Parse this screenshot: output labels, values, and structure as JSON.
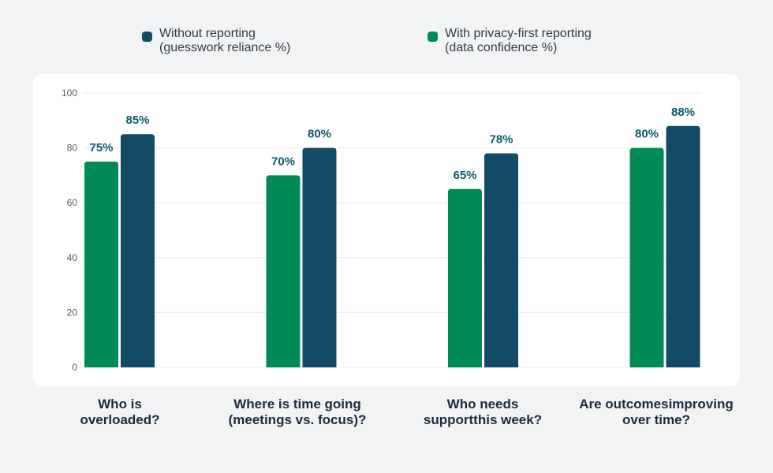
{
  "chart_data": {
    "type": "bar",
    "categories": [
      [
        "Who is",
        "overloaded?"
      ],
      [
        "Where is time going",
        "(meetings vs. focus)?"
      ],
      [
        "Who needs",
        "supportthis week?"
      ],
      [
        "Are outcomesimproving",
        "over time?"
      ]
    ],
    "series": [
      {
        "name": [
          "With privacy-first reporting",
          "(data confidence %)"
        ],
        "color": "#008a55",
        "values": [
          75,
          70,
          65,
          80
        ],
        "labels": [
          "75%",
          "70%",
          "65%",
          "80%"
        ]
      },
      {
        "name": [
          "Without reporting",
          "(guesswork reliance %)"
        ],
        "color": "#134a66",
        "values": [
          85,
          80,
          78,
          88
        ],
        "labels": [
          "85%",
          "80%",
          "78%",
          "88%"
        ]
      }
    ],
    "ylim": [
      0,
      100
    ],
    "yticks": [
      "0",
      "20",
      "40",
      "60",
      "80",
      "100"
    ],
    "grid": true,
    "legend": "top",
    "label_color": "#0f5a6c"
  }
}
